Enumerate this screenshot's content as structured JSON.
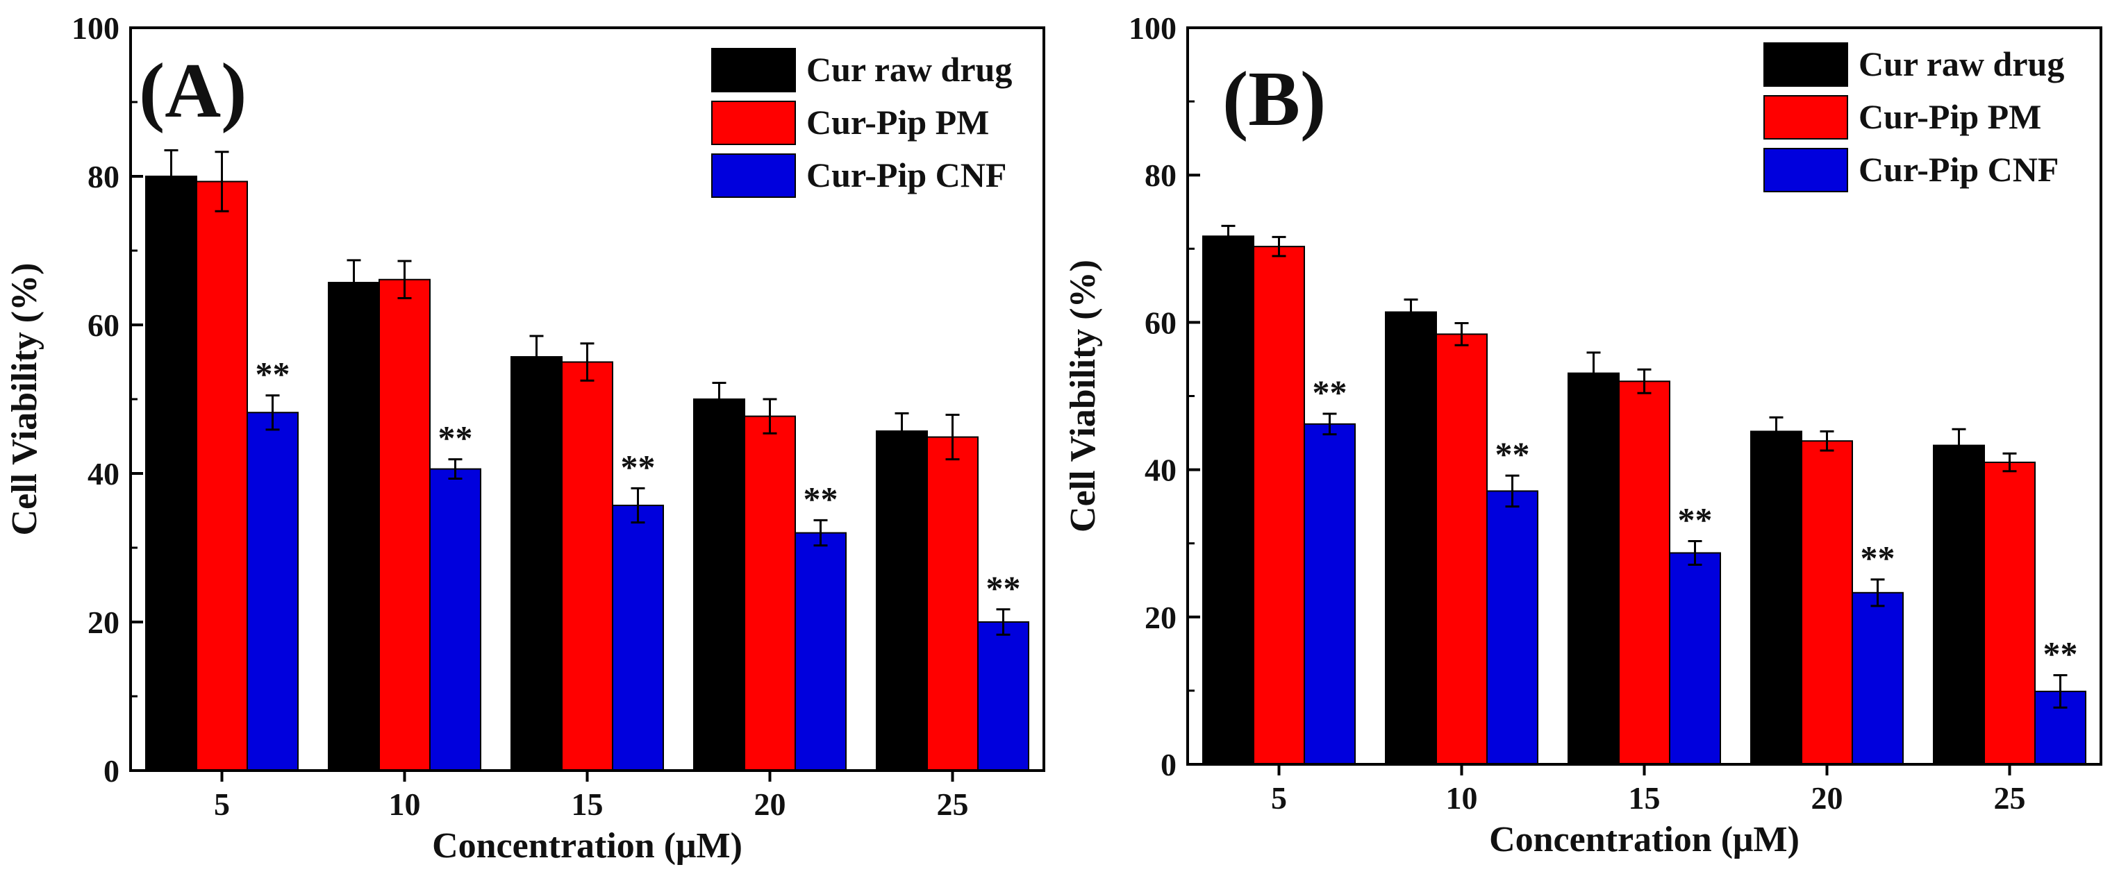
{
  "chart_data": [
    {
      "panel": "(A)",
      "type": "bar",
      "xlabel": "Concentration (μM)",
      "ylabel": "Cell Viability (%)",
      "ylim": [
        0,
        100
      ],
      "yticks": [
        0,
        20,
        40,
        60,
        80,
        100
      ],
      "categories": [
        "5",
        "10",
        "15",
        "20",
        "25"
      ],
      "legend_position": "top-right",
      "series": [
        {
          "name": "Cur raw drug",
          "color": "#000000",
          "values": [
            80,
            65.7,
            55.7,
            50,
            45.7
          ],
          "errors": [
            3.5,
            3,
            2.8,
            2.2,
            2.4
          ]
        },
        {
          "name": "Cur-Pip PM",
          "color": "#ff0000",
          "values": [
            79.3,
            66.1,
            55,
            47.7,
            44.9
          ],
          "errors": [
            4,
            2.5,
            2.5,
            2.3,
            3
          ]
        },
        {
          "name": "Cur-Pip CNF",
          "color": "#0000dd",
          "values": [
            48.2,
            40.6,
            35.7,
            32,
            20
          ],
          "errors": [
            2.3,
            1.3,
            2.3,
            1.7,
            1.7
          ]
        }
      ],
      "annotations": [
        {
          "series": "Cur-Pip CNF",
          "text": "**",
          "categories": [
            "5",
            "10",
            "15",
            "20",
            "25"
          ]
        }
      ]
    },
    {
      "panel": "(B)",
      "type": "bar",
      "xlabel": "Concentration (μM)",
      "ylabel": "Cell Viability (%)",
      "ylim": [
        0,
        100
      ],
      "yticks": [
        0,
        20,
        40,
        60,
        80,
        100
      ],
      "categories": [
        "5",
        "10",
        "15",
        "20",
        "25"
      ],
      "legend_position": "top-right",
      "series": [
        {
          "name": "Cur raw drug",
          "color": "#000000",
          "values": [
            71.7,
            61.4,
            53.1,
            45.2,
            43.3
          ],
          "errors": [
            1.4,
            1.7,
            2.8,
            1.9,
            2.2
          ]
        },
        {
          "name": "Cur-Pip PM",
          "color": "#ff0000",
          "values": [
            70.3,
            58.4,
            52,
            43.9,
            41
          ],
          "errors": [
            1.3,
            1.5,
            1.6,
            1.3,
            1.2
          ]
        },
        {
          "name": "Cur-Pip CNF",
          "color": "#0000dd",
          "values": [
            46.2,
            37.1,
            28.7,
            23.3,
            9.9
          ],
          "errors": [
            1.4,
            2.1,
            1.6,
            1.8,
            2.2
          ]
        }
      ],
      "annotations": [
        {
          "series": "Cur-Pip CNF",
          "text": "**",
          "categories": [
            "5",
            "10",
            "15",
            "20",
            "25"
          ]
        }
      ]
    }
  ]
}
